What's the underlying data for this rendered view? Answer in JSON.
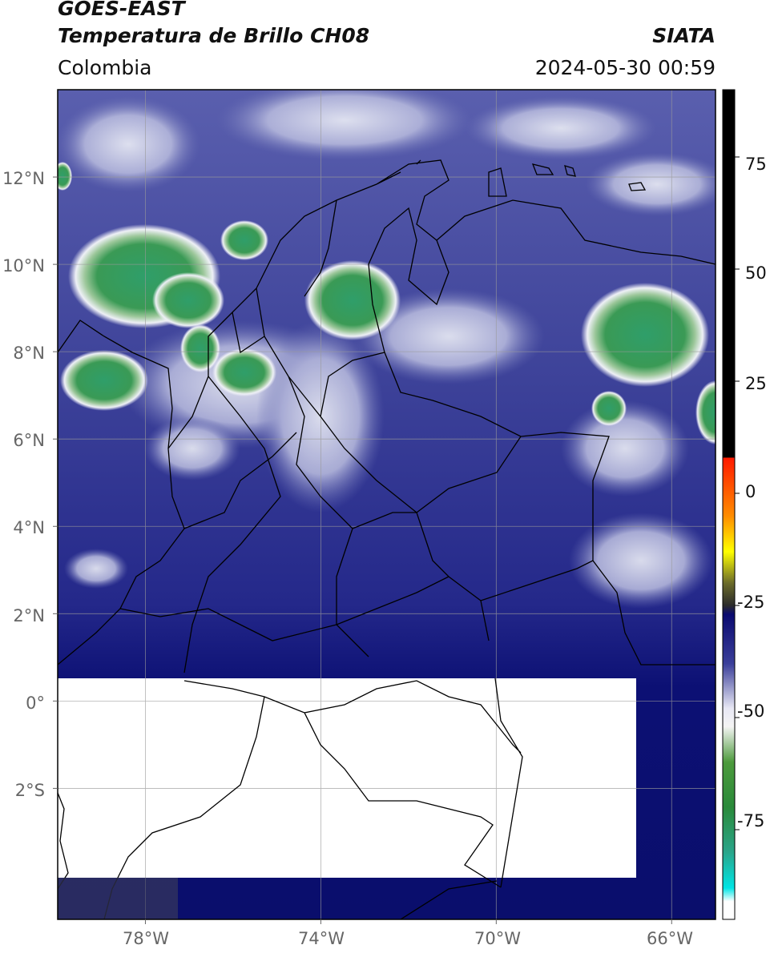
{
  "header": {
    "satellite": "GOES-EAST",
    "product": "Temperatura de Brillo CH08",
    "region": "Colombia",
    "agency": "SIATA",
    "timestamp": "2024-05-30 00:59"
  },
  "map": {
    "extent": {
      "lon_min": -80.0,
      "lon_max": -65.0,
      "lat_min": -5.0,
      "lat_max": 14.0
    },
    "lat_ticks": [
      "12°N",
      "10°N",
      "8°N",
      "6°N",
      "4°N",
      "2°N",
      "0°",
      "2°S"
    ],
    "lon_ticks": [
      "78°W",
      "74°W",
      "70°W",
      "66°W"
    ],
    "gridlines": true,
    "no_data_region": "white rectangle over southern area",
    "colors": {
      "background_cloud": "#2a2f86",
      "deep_blue": "#0b0f6e",
      "cold_cloud_green": "#2f9a5c",
      "gridline": "#9a9a9a",
      "border": "#000000"
    }
  },
  "colorbar": {
    "ticks": [
      "75",
      "50",
      "25",
      "0",
      "-25",
      "-50",
      "-75"
    ],
    "tick_values": [
      75,
      50,
      25,
      0,
      -25,
      -50,
      -75
    ],
    "range": [
      -95,
      90
    ],
    "stops": [
      {
        "v": 90,
        "c": "#000000"
      },
      {
        "v": 8,
        "c": "#000000"
      },
      {
        "v": 7.9,
        "c": "#ff1a00"
      },
      {
        "v": -5,
        "c": "#ff8c00"
      },
      {
        "v": -13,
        "c": "#ffff00"
      },
      {
        "v": -20,
        "c": "#6b6b2a"
      },
      {
        "v": -25,
        "c": "#2b2b2b"
      },
      {
        "v": -27,
        "c": "#0a0a70"
      },
      {
        "v": -38,
        "c": "#3b3f9a"
      },
      {
        "v": -48,
        "c": "#e8e8f4"
      },
      {
        "v": -52,
        "c": "#f4f4f4"
      },
      {
        "v": -60,
        "c": "#4c9a3c"
      },
      {
        "v": -70,
        "c": "#2a8a3a"
      },
      {
        "v": -80,
        "c": "#2aa58a"
      },
      {
        "v": -88,
        "c": "#00e5e5"
      },
      {
        "v": -91,
        "c": "#ffffff"
      },
      {
        "v": -95,
        "c": "#ffffff"
      }
    ]
  }
}
